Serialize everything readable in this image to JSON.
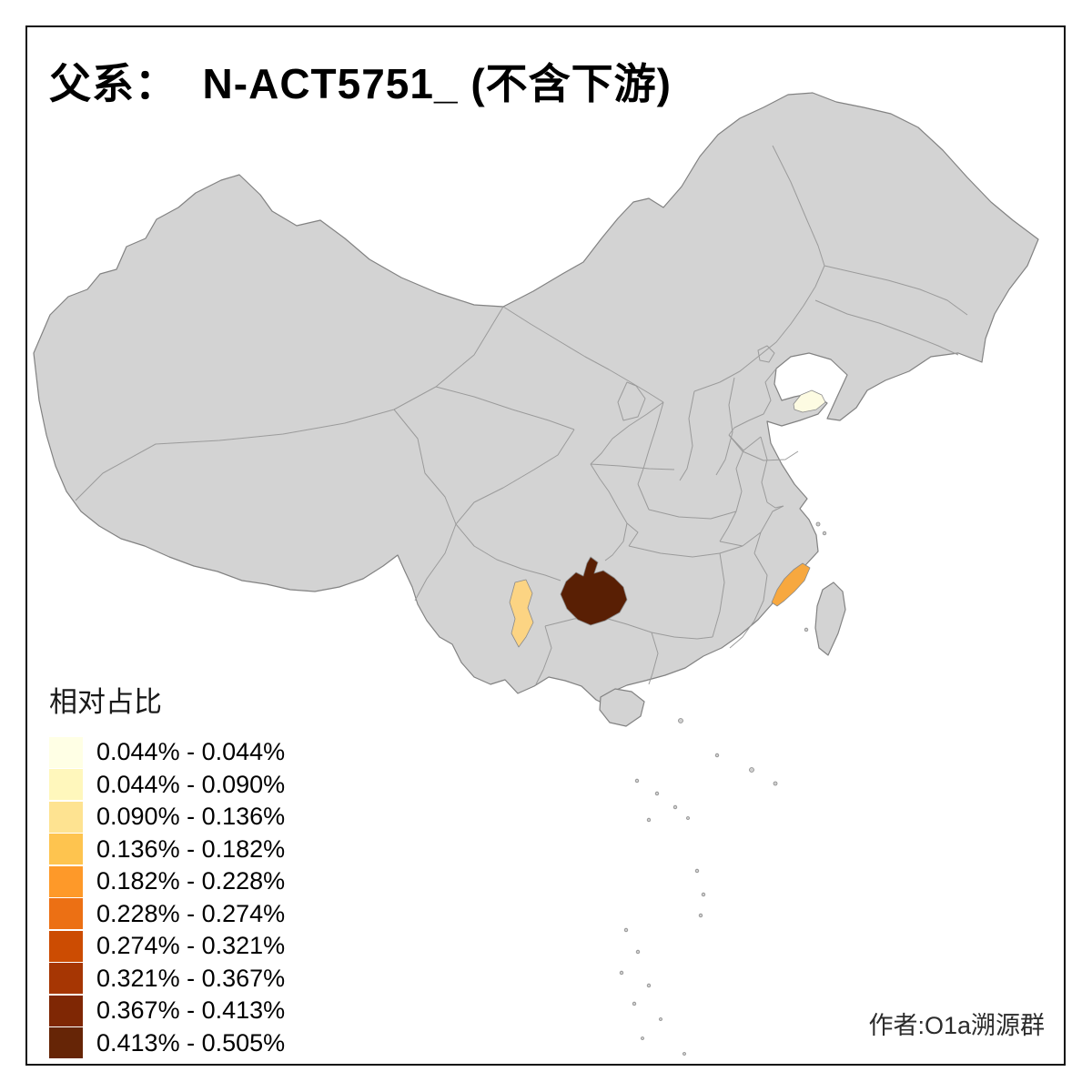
{
  "chart_data": {
    "type": "choropleth_map",
    "title": "父系：  N-ACT5751_ (不含下游)",
    "legend_title": "相对占比",
    "legend_position": "bottom-left",
    "base_map_color": "#d3d3d3",
    "border_color": "#9b9b9b",
    "author": "作者:O1a溯源群",
    "bins": [
      {
        "label": "0.044% - 0.044%",
        "color": "#ffffe5"
      },
      {
        "label": "0.044% - 0.090%",
        "color": "#fff7bc"
      },
      {
        "label": "0.090% - 0.136%",
        "color": "#fee391"
      },
      {
        "label": "0.136% - 0.182%",
        "color": "#fec44f"
      },
      {
        "label": "0.182% - 0.228%",
        "color": "#fe9929"
      },
      {
        "label": "0.228% - 0.274%",
        "color": "#ec7014"
      },
      {
        "label": "0.274% - 0.321%",
        "color": "#cc4c02"
      },
      {
        "label": "0.321% - 0.367%",
        "color": "#a63603"
      },
      {
        "label": "0.367% - 0.413%",
        "color": "#7f2704"
      },
      {
        "label": "0.413% - 0.505%",
        "color": "#662506"
      }
    ],
    "highlighted_regions": [
      {
        "region": "Shandong peninsula",
        "color": "#fdfbe2",
        "bin": "0.044% - 0.044%"
      },
      {
        "region": "Fujian coast",
        "color": "#f7a83f",
        "bin": "0.182% - 0.228%"
      },
      {
        "region": "Central Yunnan",
        "color": "#fcd483",
        "bin": "0.090% - 0.136%"
      },
      {
        "region": "Guizhou",
        "color": "#591f04",
        "bin": "0.413% - 0.505%"
      }
    ]
  }
}
